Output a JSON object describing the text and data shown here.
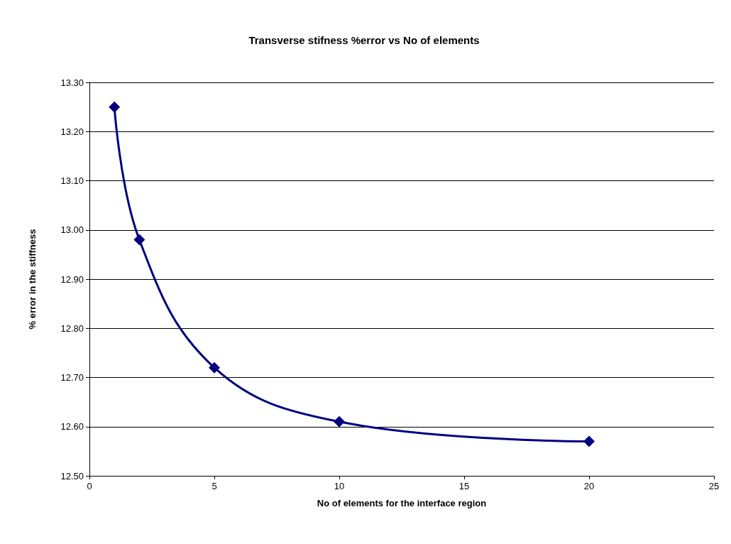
{
  "chart_data": {
    "type": "line",
    "title": "Transverse stifness %error vs No of elements",
    "xlabel": "No of elements for the interface region",
    "ylabel": "% error in the stiffness",
    "x": [
      1,
      2,
      5,
      10,
      20
    ],
    "series": [
      {
        "color": "#000080",
        "values": [
          13.25,
          12.98,
          12.72,
          12.61,
          12.57
        ]
      }
    ],
    "xlim": [
      0,
      25
    ],
    "xticks": [
      0,
      5,
      10,
      15,
      20,
      25
    ],
    "ylim": [
      12.5,
      13.3
    ],
    "yticks": [
      {
        "value": 12.5,
        "label": "12.50"
      },
      {
        "value": 12.6,
        "label": "12.60"
      },
      {
        "value": 12.7,
        "label": "12.70"
      },
      {
        "value": 12.8,
        "label": "12.80"
      },
      {
        "value": 12.9,
        "label": "12.90"
      },
      {
        "value": 13.0,
        "label": "13.00"
      },
      {
        "value": 13.1,
        "label": "13.10"
      },
      {
        "value": 13.2,
        "label": "13.20"
      },
      {
        "value": 13.3,
        "label": "13.30"
      }
    ],
    "grid": "y",
    "marker": "diamond",
    "line_style": "solid"
  }
}
